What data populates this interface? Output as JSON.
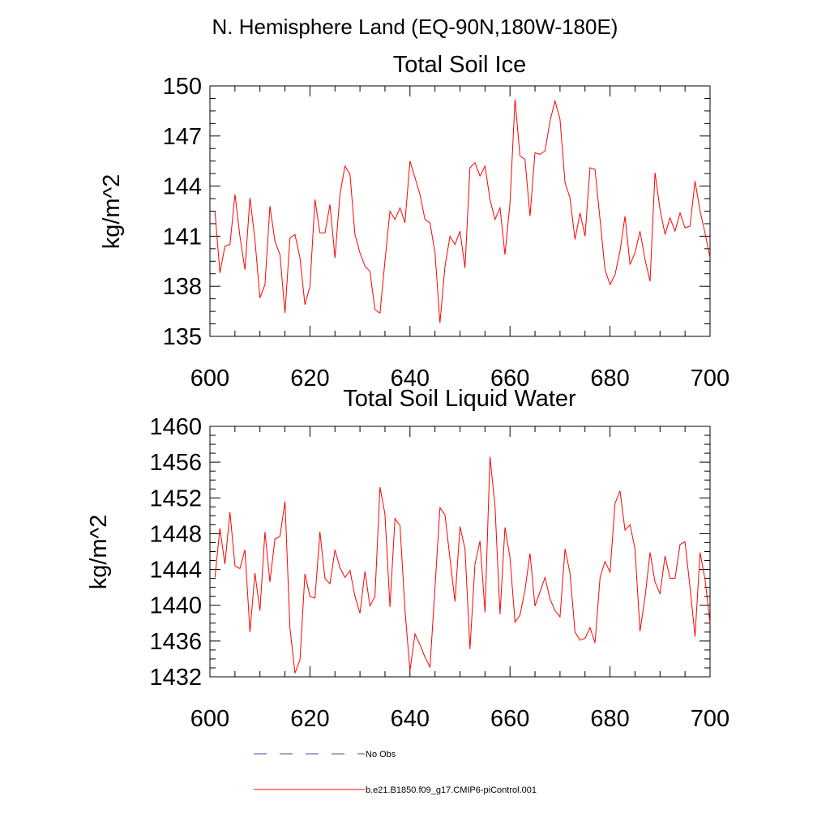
{
  "figure": {
    "main_title": "N. Hemisphere Land (EQ-90N,180W-180E)"
  },
  "colors": {
    "series_line": "#ff0000",
    "obs_line": "#4a4aa0",
    "axis": "#000000"
  },
  "legend": {
    "entries": [
      {
        "label": "No Obs",
        "style": "dashed",
        "color": "#4a4aa0"
      },
      {
        "label": "b.e21.B1850.f09_g17.CMIP6-piControl.001",
        "style": "solid",
        "color": "#ff0000"
      }
    ]
  },
  "chart_data": [
    {
      "type": "line",
      "title": "Total Soil Ice",
      "xlabel": "",
      "ylabel": "kg/m^2",
      "xlim": [
        600,
        700
      ],
      "ylim": [
        135,
        150
      ],
      "xticks": [
        600,
        620,
        640,
        660,
        680,
        700
      ],
      "yticks": [
        135,
        138,
        141,
        144,
        147,
        150
      ],
      "grid": false,
      "series": [
        {
          "name": "b.e21.B1850.f09_g17.CMIP6-piControl.001",
          "x_start": 601,
          "x_step": 1,
          "values": [
            142.5,
            138.8,
            140.4,
            140.5,
            143.5,
            141.0,
            139.0,
            143.3,
            140.8,
            137.3,
            138.1,
            142.8,
            140.7,
            139.9,
            136.4,
            140.9,
            141.1,
            139.7,
            136.9,
            138.0,
            143.2,
            141.2,
            141.2,
            142.9,
            139.7,
            143.5,
            145.2,
            144.7,
            141.1,
            140.0,
            139.2,
            138.9,
            136.6,
            136.4,
            139.5,
            142.5,
            142.0,
            142.7,
            141.8,
            145.5,
            144.5,
            143.5,
            142.0,
            141.8,
            140.0,
            135.8,
            139.2,
            141.0,
            140.5,
            141.3,
            139.1,
            145.1,
            145.4,
            144.6,
            145.2,
            143.2,
            142.0,
            142.7,
            139.9,
            143.0,
            149.2,
            145.8,
            145.6,
            142.2,
            146.0,
            145.9,
            146.1,
            147.9,
            149.1,
            148.0,
            144.2,
            143.3,
            140.8,
            142.4,
            141.0,
            145.1,
            145.0,
            142.0,
            139.0,
            138.1,
            138.7,
            140.1,
            142.2,
            139.3,
            140.0,
            141.3,
            139.6,
            138.3,
            144.8,
            142.6,
            141.1,
            142.1,
            141.3,
            142.4,
            141.5,
            141.6,
            144.3,
            142.5,
            141.2,
            139.7
          ]
        }
      ]
    },
    {
      "type": "line",
      "title": "Total Soil Liquid Water",
      "xlabel": "",
      "ylabel": "kg/m^2",
      "xlim": [
        600,
        700
      ],
      "ylim": [
        1432,
        1460
      ],
      "xticks": [
        600,
        620,
        640,
        660,
        680,
        700
      ],
      "yticks": [
        1432,
        1436,
        1440,
        1444,
        1448,
        1452,
        1456,
        1460
      ],
      "grid": false,
      "series": [
        {
          "name": "b.e21.B1850.f09_g17.CMIP6-piControl.001",
          "x_start": 601,
          "x_step": 1,
          "values": [
            1443.1,
            1448.6,
            1444.6,
            1450.4,
            1444.4,
            1444.1,
            1446.2,
            1437.0,
            1443.6,
            1439.4,
            1448.2,
            1442.6,
            1447.4,
            1447.7,
            1451.6,
            1437.5,
            1432.4,
            1433.9,
            1443.5,
            1441.0,
            1440.8,
            1448.2,
            1443.0,
            1442.4,
            1446.2,
            1444.2,
            1443.1,
            1443.9,
            1441.0,
            1439.1,
            1443.8,
            1439.9,
            1441.0,
            1453.2,
            1450.2,
            1439.8,
            1449.7,
            1448.9,
            1439.5,
            1432.7,
            1436.8,
            1435.6,
            1434.2,
            1433.1,
            1442.0,
            1450.9,
            1450.1,
            1445.2,
            1440.4,
            1448.8,
            1446.3,
            1435.1,
            1444.6,
            1447.2,
            1439.2,
            1456.6,
            1451.1,
            1439.0,
            1448.7,
            1445.3,
            1438.1,
            1438.9,
            1441.7,
            1445.8,
            1439.9,
            1441.5,
            1443.1,
            1440.7,
            1439.4,
            1438.7,
            1446.3,
            1443.6,
            1437.0,
            1436.1,
            1436.3,
            1437.5,
            1435.8,
            1443.1,
            1444.9,
            1443.7,
            1451.4,
            1452.8,
            1448.4,
            1449.0,
            1446.3,
            1437.1,
            1440.9,
            1445.9,
            1442.6,
            1441.3,
            1445.5,
            1443.0,
            1443.0,
            1446.8,
            1447.1,
            1442.0,
            1436.5,
            1445.9,
            1442.9,
            1438.0
          ]
        }
      ]
    }
  ]
}
